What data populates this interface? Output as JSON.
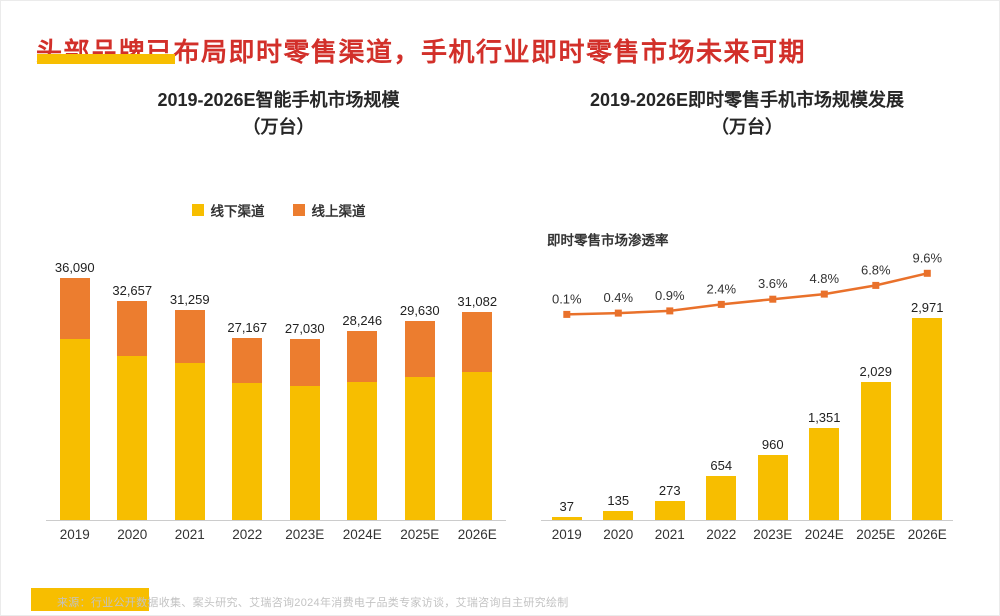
{
  "header": {
    "title": "头部品牌已布局即时零售渠道，手机行业即时零售市场未来可期"
  },
  "colors": {
    "brand_yellow": "#F7BE00",
    "brand_orange": "#EC7D2F",
    "line_orange": "#E9712B",
    "title_red": "#D2302A",
    "axis_gray": "#CCCCCC",
    "text_dark": "#333333",
    "footer_gray": "#C3C3C3"
  },
  "chart_data": [
    {
      "type": "bar",
      "stacked": true,
      "title": "2019-2026E智能手机市场规模",
      "subtitle": "（万台）",
      "legend": [
        "线下渠道",
        "线上渠道"
      ],
      "legend_position": "top",
      "categories": [
        "2019",
        "2020",
        "2021",
        "2022",
        "2023E",
        "2024E",
        "2025E",
        "2026E"
      ],
      "totals": [
        36090,
        32657,
        31259,
        27167,
        27030,
        28246,
        29630,
        31082
      ],
      "total_labels": [
        "36,090",
        "32,657",
        "31,259",
        "27,167",
        "27,030",
        "28,246",
        "29,630",
        "31,082"
      ],
      "series": [
        {
          "name": "线下渠道",
          "color": "#F7BE00",
          "values": [
            27000,
            24500,
            23400,
            20400,
            20000,
            20600,
            21300,
            22100
          ]
        },
        {
          "name": "线上渠道",
          "color": "#EC7D2F",
          "values": [
            9090,
            8157,
            7859,
            6767,
            7030,
            7646,
            8330,
            8982
          ]
        }
      ],
      "ylim": [
        0,
        36090
      ],
      "grid": false
    },
    {
      "type": "bar+line",
      "title": "2019-2026E即时零售手机市场规模发展",
      "subtitle": "（万台）",
      "categories": [
        "2019",
        "2020",
        "2021",
        "2022",
        "2023E",
        "2024E",
        "2025E",
        "2026E"
      ],
      "bars": {
        "color": "#F7BE00",
        "values": [
          37,
          135,
          273,
          654,
          960,
          1351,
          2029,
          2971
        ],
        "labels": [
          "37",
          "135",
          "273",
          "654",
          "960",
          "1,351",
          "2,029",
          "2,971"
        ]
      },
      "line": {
        "label": "即时零售市场渗透率",
        "color": "#E9712B",
        "values_pct": [
          0.1,
          0.4,
          0.9,
          2.4,
          3.6,
          4.8,
          6.8,
          9.6
        ],
        "labels": [
          "0.1%",
          "0.4%",
          "0.9%",
          "2.4%",
          "3.6%",
          "4.8%",
          "6.8%",
          "9.6%"
        ]
      },
      "ylim": [
        0,
        2971
      ],
      "grid": false
    }
  ],
  "footer": {
    "source": "来源：行业公开数据收集、案头研究、艾瑞咨询2024年消费电子品类专家访谈，艾瑞咨询自主研究绘制"
  }
}
